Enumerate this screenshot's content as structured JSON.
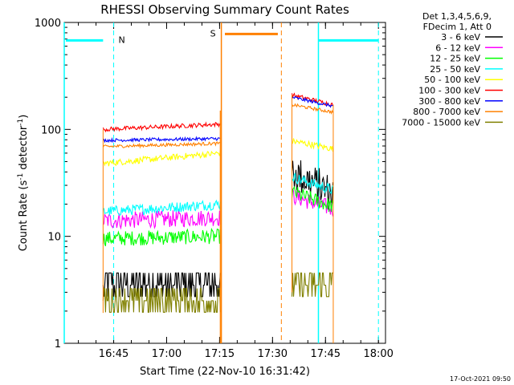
{
  "chart_data": {
    "type": "line",
    "title": "RHESSI Observing Summary Count Rates",
    "xlabel": "Start Time (22-Nov-10 16:31:42)",
    "ylabel_main": "Count Rate (s",
    "ylabel_sup1": "-1",
    "ylabel_mid": " detector",
    "ylabel_sup2": "-1",
    "ylabel_end": ")",
    "y_scale": "log",
    "ylim": [
      1,
      1000
    ],
    "xlim_minutes": [
      16.0,
      107.0
    ],
    "x_ticks": [
      {
        "label": "16:45",
        "min": 30
      },
      {
        "label": "17:00",
        "min": 45
      },
      {
        "label": "17:15",
        "min": 60
      },
      {
        "label": "17:30",
        "min": 75
      },
      {
        "label": "17:45",
        "min": 90
      },
      {
        "label": "18:00",
        "min": 105
      }
    ],
    "y_ticks": [
      {
        "label": "1",
        "value": 1
      },
      {
        "label": "10",
        "value": 10
      },
      {
        "label": "100",
        "value": 100
      },
      {
        "label": "1000",
        "value": 1000
      }
    ],
    "legend_header": [
      "Det 1,3,4,5,6,9,",
      "FDecim 1, Att 0"
    ],
    "legend_position": "right",
    "series": [
      {
        "name": "3 - 6 keV",
        "color": "#000000",
        "seg1": [
          3.5,
          3.5
        ],
        "seg2": [
          40,
          25
        ]
      },
      {
        "name": "6 - 12 keV",
        "color": "#ff00ff",
        "seg1": [
          14,
          15
        ],
        "seg2": [
          24,
          18
        ]
      },
      {
        "name": "12 - 25 keV",
        "color": "#00ff00",
        "seg1": [
          9.5,
          10
        ],
        "seg2": [
          26,
          19
        ]
      },
      {
        "name": "25 - 50 keV",
        "color": "#00ffff",
        "seg1": [
          17,
          20
        ],
        "seg2": [
          36,
          27
        ]
      },
      {
        "name": "50 - 100 keV",
        "color": "#ffff00",
        "seg1": [
          48,
          60
        ],
        "seg2": [
          78,
          66
        ]
      },
      {
        "name": "100 - 300 keV",
        "color": "#ff0000",
        "seg1": [
          100,
          112
        ],
        "seg2": [
          210,
          170
        ]
      },
      {
        "name": "300 - 800 keV",
        "color": "#0000ff",
        "seg1": [
          79,
          82
        ],
        "seg2": [
          200,
          165
        ]
      },
      {
        "name": "800 - 7000 keV",
        "color": "#ff8000",
        "seg1": [
          69,
          74
        ],
        "seg2": [
          170,
          145
        ]
      },
      {
        "name": "7000 - 15000 keV",
        "color": "#808000",
        "seg1": [
          3.0,
          3.5
        ],
        "seg2": [
          3.5,
          3.5
        ]
      }
    ],
    "segments_minutes": {
      "seg1": [
        27.0,
        60.2
      ],
      "seg2": [
        80.5,
        92.2
      ]
    },
    "flags": [
      {
        "label": "N",
        "color": "#00ffff",
        "x_start": 16.0,
        "x_end": 27.0,
        "line_at": 30.0,
        "level": 680,
        "vlines_solid": [
          16.0,
          88.0
        ],
        "vlines_dashed": [
          30.0,
          105.0
        ],
        "bar_end_x": 105.0,
        "bar_start2_x": 88.0
      },
      {
        "label": "S",
        "color": "#ff8000",
        "x_start": 61.5,
        "x_end": 76.5,
        "line_at": 60.5,
        "level": 780,
        "vlines_solid": [
          60.5
        ],
        "vlines_dashed": [
          77.5
        ]
      }
    ],
    "grid": false
  },
  "footer_stamp": "17-Oct-2021 09:50"
}
